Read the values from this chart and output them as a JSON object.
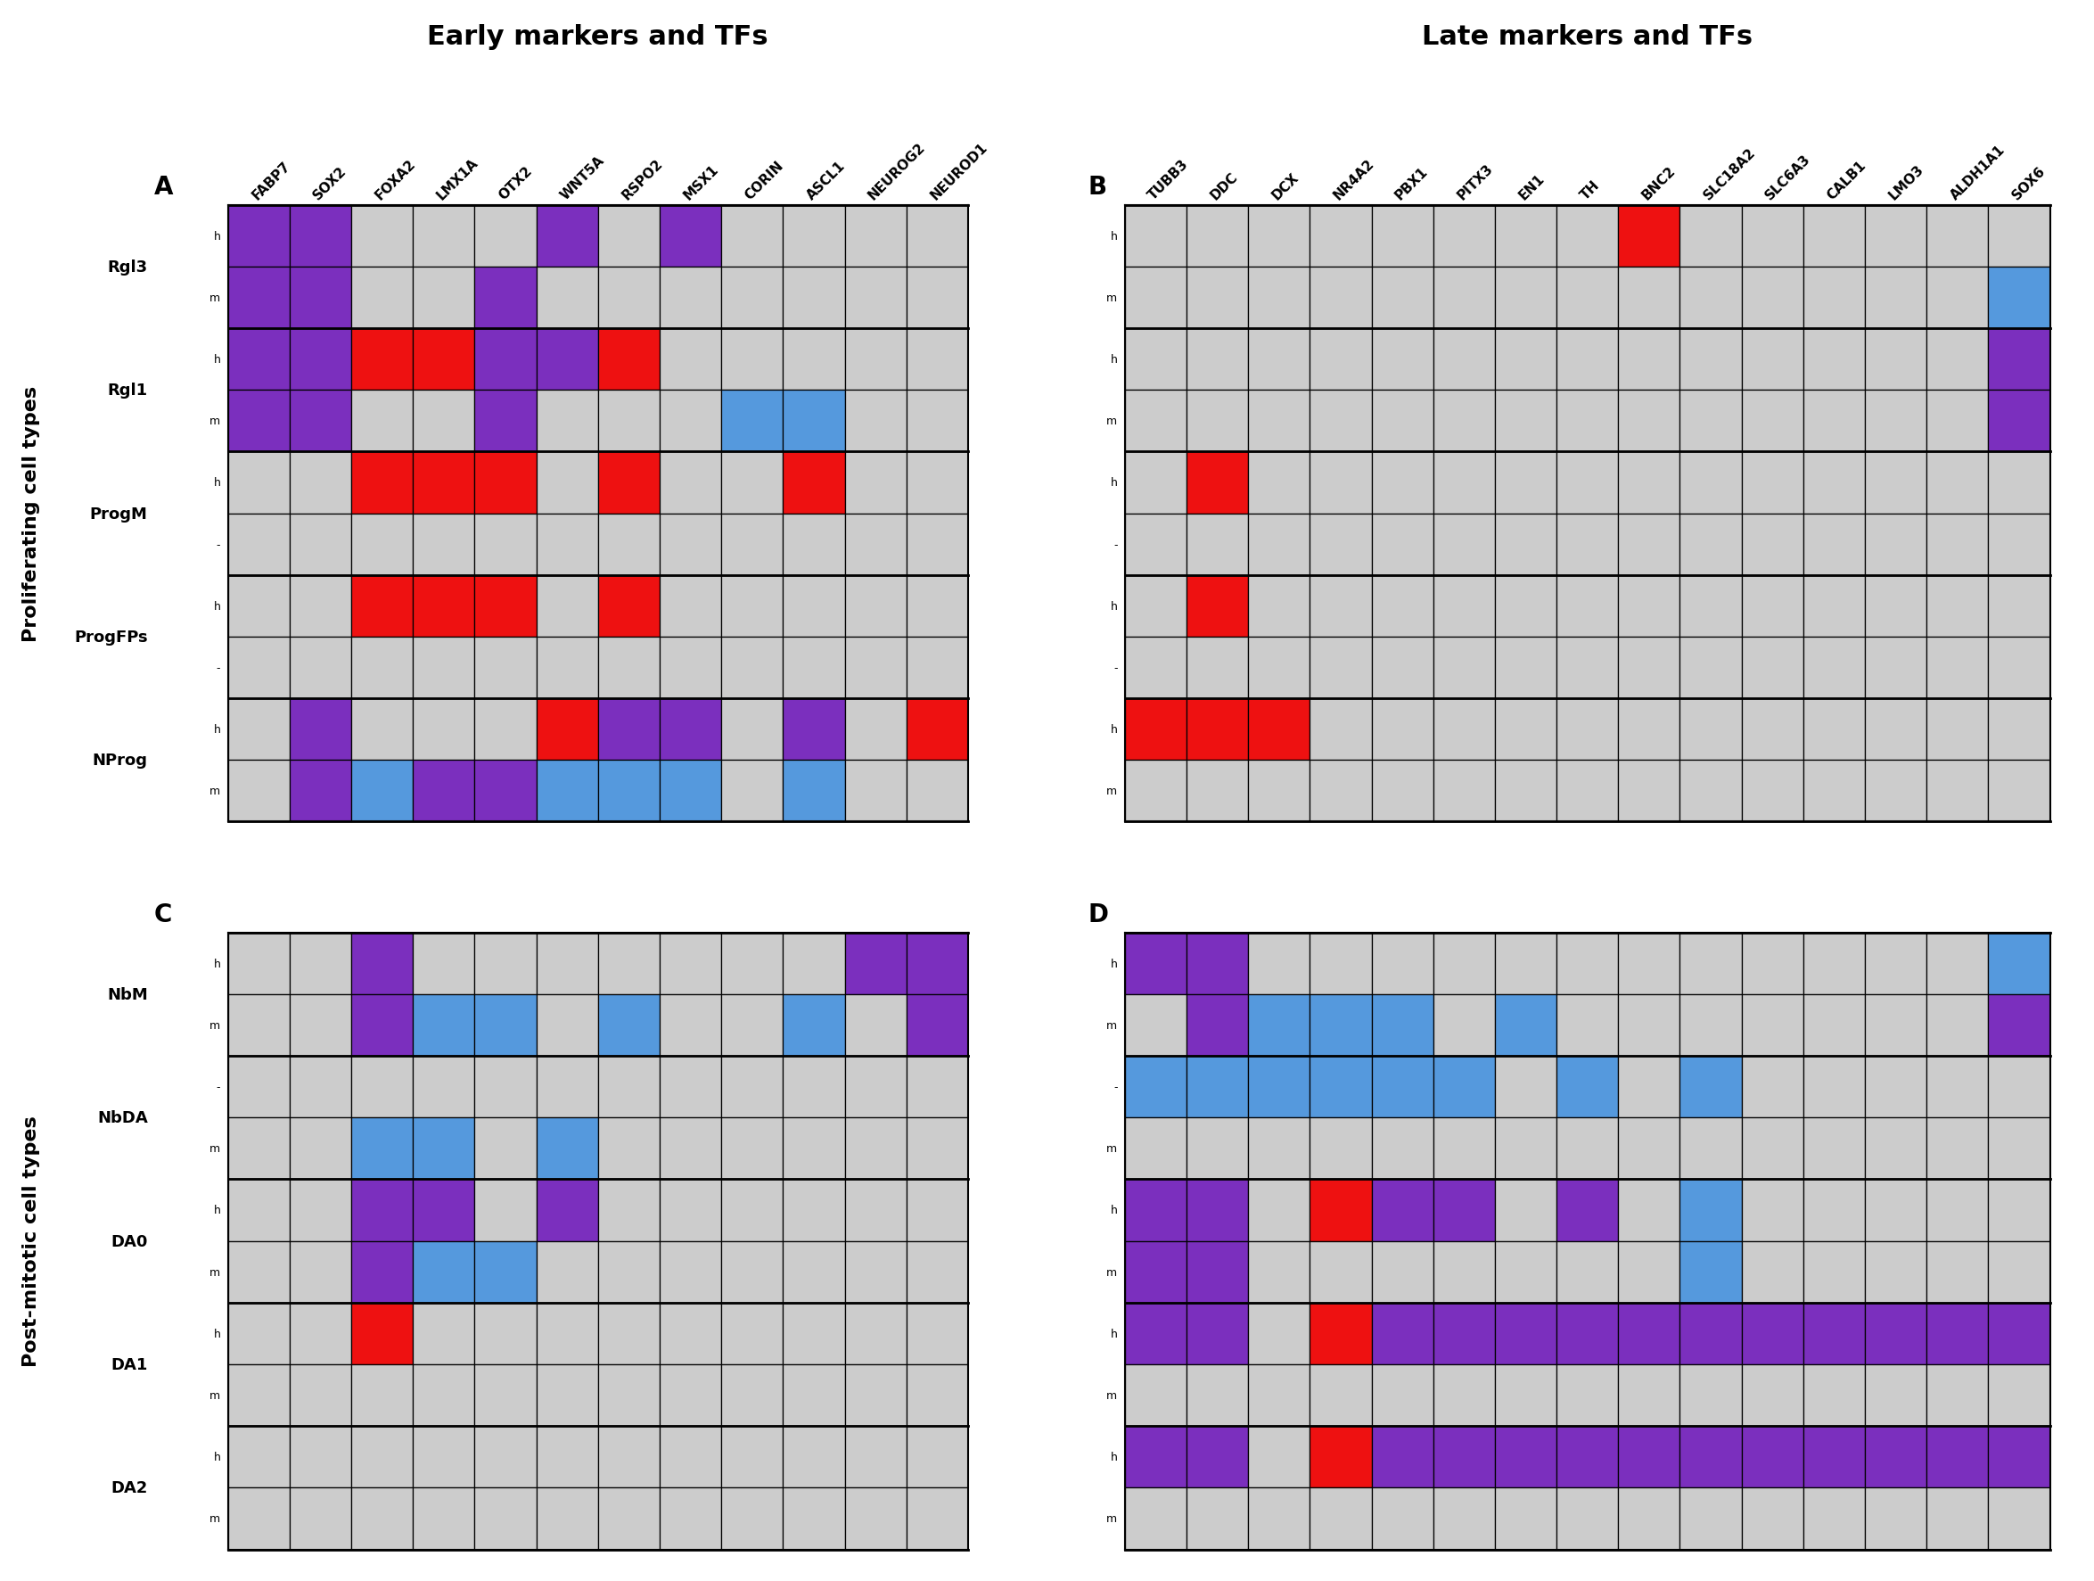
{
  "title_left": "Early markers and TFs",
  "title_right": "Late markers and TFs",
  "label_A": "A",
  "label_B": "B",
  "label_C": "C",
  "label_D": "D",
  "y_label_top": "Proliferating cell types",
  "y_label_bottom": "Post-mitotic cell types",
  "cols_A": [
    "FABP7",
    "SOX2",
    "FOXA2",
    "LMX1A",
    "OTX2",
    "WNT5A",
    "RSPO2",
    "MSX1",
    "CORIN",
    "ASCL1",
    "NEUROG2",
    "NEUROD1"
  ],
  "cols_B": [
    "TUBB3",
    "DDC",
    "DCX",
    "NR4A2",
    "PBX1",
    "PITX3",
    "EN1",
    "TH",
    "BNC2",
    "SLC18A2",
    "SLC6A3",
    "CALB1",
    "LMO3",
    "ALDH1A1",
    "SOX6"
  ],
  "rows_prolif": [
    [
      "Rgl3",
      "h"
    ],
    [
      "Rgl3",
      "m"
    ],
    [
      "Rgl1",
      "h"
    ],
    [
      "Rgl1",
      "m"
    ],
    [
      "ProgM",
      "h"
    ],
    [
      "ProgM",
      "-"
    ],
    [
      "ProgFPs",
      "h"
    ],
    [
      "ProgFPs",
      "-"
    ],
    [
      "NProg",
      "h"
    ],
    [
      "NProg",
      "m"
    ]
  ],
  "rows_postmit": [
    [
      "NbM",
      "h"
    ],
    [
      "NbM",
      "m"
    ],
    [
      "NbDA",
      "-"
    ],
    [
      "NbDA",
      "m"
    ],
    [
      "DA0",
      "h"
    ],
    [
      "DA0",
      "m"
    ],
    [
      "DA1",
      "h"
    ],
    [
      "DA1",
      "m"
    ],
    [
      "DA2",
      "h"
    ],
    [
      "DA2",
      "m"
    ]
  ],
  "purple": "#7B2FBE",
  "red": "#EE1111",
  "blue": "#5599DD",
  "gray": "#CCCCCC",
  "data_A": [
    [
      "purple",
      "purple",
      "gray",
      "gray",
      "gray",
      "purple",
      "gray",
      "purple",
      "gray",
      "gray",
      "gray",
      "gray"
    ],
    [
      "purple",
      "purple",
      "gray",
      "gray",
      "purple",
      "gray",
      "gray",
      "gray",
      "gray",
      "gray",
      "gray",
      "gray"
    ],
    [
      "purple",
      "purple",
      "red",
      "red",
      "purple",
      "purple",
      "red",
      "gray",
      "gray",
      "gray",
      "gray",
      "gray"
    ],
    [
      "purple",
      "purple",
      "gray",
      "gray",
      "purple",
      "gray",
      "gray",
      "gray",
      "blue",
      "blue",
      "gray",
      "gray"
    ],
    [
      "gray",
      "gray",
      "red",
      "red",
      "red",
      "gray",
      "red",
      "gray",
      "gray",
      "red",
      "gray",
      "gray"
    ],
    [
      "gray",
      "gray",
      "gray",
      "gray",
      "gray",
      "gray",
      "gray",
      "gray",
      "gray",
      "gray",
      "gray",
      "gray"
    ],
    [
      "gray",
      "gray",
      "red",
      "red",
      "red",
      "gray",
      "red",
      "gray",
      "gray",
      "gray",
      "gray",
      "gray"
    ],
    [
      "gray",
      "gray",
      "gray",
      "gray",
      "gray",
      "gray",
      "gray",
      "gray",
      "gray",
      "gray",
      "gray",
      "gray"
    ],
    [
      "gray",
      "purple",
      "gray",
      "gray",
      "gray",
      "red",
      "purple",
      "purple",
      "gray",
      "purple",
      "gray",
      "red"
    ],
    [
      "gray",
      "purple",
      "blue",
      "purple",
      "purple",
      "blue",
      "blue",
      "blue",
      "gray",
      "blue",
      "gray",
      "gray"
    ]
  ],
  "data_B": [
    [
      "gray",
      "gray",
      "gray",
      "gray",
      "gray",
      "gray",
      "gray",
      "gray",
      "red",
      "gray",
      "gray",
      "gray",
      "gray",
      "gray",
      "gray"
    ],
    [
      "gray",
      "gray",
      "gray",
      "gray",
      "gray",
      "gray",
      "gray",
      "gray",
      "gray",
      "gray",
      "gray",
      "gray",
      "gray",
      "gray",
      "blue"
    ],
    [
      "gray",
      "gray",
      "gray",
      "gray",
      "gray",
      "gray",
      "gray",
      "gray",
      "gray",
      "gray",
      "gray",
      "gray",
      "gray",
      "gray",
      "purple"
    ],
    [
      "gray",
      "gray",
      "gray",
      "gray",
      "gray",
      "gray",
      "gray",
      "gray",
      "gray",
      "gray",
      "gray",
      "gray",
      "gray",
      "gray",
      "purple"
    ],
    [
      "gray",
      "red",
      "gray",
      "gray",
      "gray",
      "gray",
      "gray",
      "gray",
      "gray",
      "gray",
      "gray",
      "gray",
      "gray",
      "gray",
      "gray"
    ],
    [
      "gray",
      "gray",
      "gray",
      "gray",
      "gray",
      "gray",
      "gray",
      "gray",
      "gray",
      "gray",
      "gray",
      "gray",
      "gray",
      "gray",
      "gray"
    ],
    [
      "gray",
      "red",
      "gray",
      "gray",
      "gray",
      "gray",
      "gray",
      "gray",
      "gray",
      "gray",
      "gray",
      "gray",
      "gray",
      "gray",
      "gray"
    ],
    [
      "gray",
      "gray",
      "gray",
      "gray",
      "gray",
      "gray",
      "gray",
      "gray",
      "gray",
      "gray",
      "gray",
      "gray",
      "gray",
      "gray",
      "gray"
    ],
    [
      "red",
      "red",
      "red",
      "gray",
      "gray",
      "gray",
      "gray",
      "gray",
      "gray",
      "gray",
      "gray",
      "gray",
      "gray",
      "gray",
      "gray"
    ],
    [
      "gray",
      "gray",
      "gray",
      "gray",
      "gray",
      "gray",
      "gray",
      "gray",
      "gray",
      "gray",
      "gray",
      "gray",
      "gray",
      "gray",
      "gray"
    ]
  ],
  "data_C": [
    [
      "gray",
      "gray",
      "purple",
      "gray",
      "gray",
      "gray",
      "gray",
      "gray",
      "gray",
      "gray",
      "purple",
      "purple"
    ],
    [
      "gray",
      "gray",
      "purple",
      "blue",
      "blue",
      "gray",
      "blue",
      "gray",
      "gray",
      "blue",
      "gray",
      "purple"
    ],
    [
      "gray",
      "gray",
      "gray",
      "gray",
      "gray",
      "gray",
      "gray",
      "gray",
      "gray",
      "gray",
      "gray",
      "gray"
    ],
    [
      "gray",
      "gray",
      "blue",
      "blue",
      "gray",
      "blue",
      "gray",
      "gray",
      "gray",
      "gray",
      "gray",
      "gray"
    ],
    [
      "gray",
      "gray",
      "purple",
      "purple",
      "gray",
      "purple",
      "gray",
      "gray",
      "gray",
      "gray",
      "gray",
      "gray"
    ],
    [
      "gray",
      "gray",
      "purple",
      "blue",
      "blue",
      "gray",
      "gray",
      "gray",
      "gray",
      "gray",
      "gray",
      "gray"
    ],
    [
      "gray",
      "gray",
      "red",
      "gray",
      "gray",
      "gray",
      "gray",
      "gray",
      "gray",
      "gray",
      "gray",
      "gray"
    ],
    [
      "gray",
      "gray",
      "gray",
      "gray",
      "gray",
      "gray",
      "gray",
      "gray",
      "gray",
      "gray",
      "gray",
      "gray"
    ],
    [
      "gray",
      "gray",
      "gray",
      "gray",
      "gray",
      "gray",
      "gray",
      "gray",
      "gray",
      "gray",
      "gray",
      "gray"
    ],
    [
      "gray",
      "gray",
      "gray",
      "gray",
      "gray",
      "gray",
      "gray",
      "gray",
      "gray",
      "gray",
      "gray",
      "gray"
    ]
  ],
  "data_D": [
    [
      "purple",
      "purple",
      "gray",
      "gray",
      "gray",
      "gray",
      "gray",
      "gray",
      "gray",
      "gray",
      "gray",
      "gray",
      "gray",
      "gray",
      "blue"
    ],
    [
      "gray",
      "purple",
      "blue",
      "blue",
      "blue",
      "gray",
      "blue",
      "gray",
      "gray",
      "gray",
      "gray",
      "gray",
      "gray",
      "gray",
      "purple"
    ],
    [
      "blue",
      "blue",
      "blue",
      "blue",
      "blue",
      "blue",
      "gray",
      "blue",
      "gray",
      "blue",
      "gray",
      "gray",
      "gray",
      "gray",
      "gray"
    ],
    [
      "gray",
      "gray",
      "gray",
      "gray",
      "gray",
      "gray",
      "gray",
      "gray",
      "gray",
      "gray",
      "gray",
      "gray",
      "gray",
      "gray",
      "gray"
    ],
    [
      "purple",
      "purple",
      "gray",
      "red",
      "purple",
      "purple",
      "gray",
      "purple",
      "gray",
      "blue",
      "gray",
      "gray",
      "gray",
      "gray",
      "gray"
    ],
    [
      "purple",
      "purple",
      "gray",
      "gray",
      "gray",
      "gray",
      "gray",
      "gray",
      "gray",
      "blue",
      "gray",
      "gray",
      "gray",
      "gray",
      "gray"
    ],
    [
      "purple",
      "purple",
      "gray",
      "red",
      "purple",
      "purple",
      "purple",
      "purple",
      "purple",
      "purple",
      "purple",
      "purple",
      "purple",
      "purple",
      "purple"
    ],
    [
      "gray",
      "gray",
      "gray",
      "gray",
      "gray",
      "gray",
      "gray",
      "gray",
      "gray",
      "gray",
      "gray",
      "gray",
      "gray",
      "gray",
      "gray"
    ],
    [
      "purple",
      "purple",
      "gray",
      "red",
      "purple",
      "purple",
      "purple",
      "purple",
      "purple",
      "purple",
      "purple",
      "purple",
      "purple",
      "purple",
      "purple"
    ],
    [
      "gray",
      "gray",
      "gray",
      "gray",
      "gray",
      "gray",
      "gray",
      "gray",
      "gray",
      "gray",
      "gray",
      "gray",
      "gray",
      "gray",
      "gray"
    ]
  ]
}
